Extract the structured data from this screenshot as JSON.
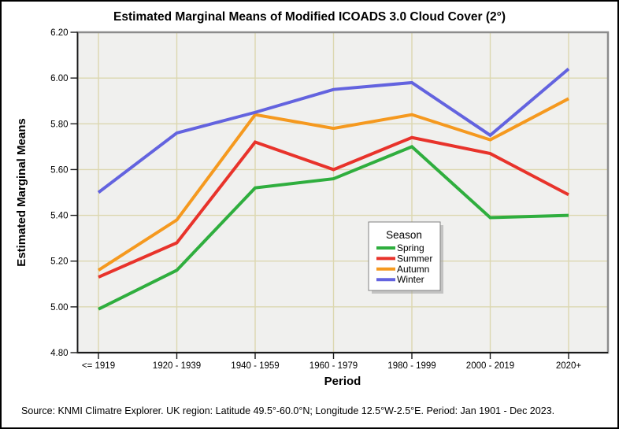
{
  "window": {
    "title": "Estimated Marginal Means of Modified ICOADS 3.0 Cloud Cover (2°)"
  },
  "footer_text": "Source: KNMI Climatre Explorer. UK region: Latitude 49.5°-60.0°N; Longitude 12.5°W-2.5°E. Period: Jan 1901 - Dec 2023.",
  "chart_data": {
    "type": "line",
    "title": "Estimated Marginal Means of Modified ICOADS 3.0 Cloud Cover (2°)",
    "xlabel": "Period",
    "ylabel": "Estimated Marginal Means",
    "categories": [
      "<= 1919",
      "1920 - 1939",
      "1940 - 1959",
      "1960 - 1979",
      "1980 - 1999",
      "2000 - 2019",
      "2020+"
    ],
    "series": [
      {
        "name": "Spring",
        "color": "#2FAE3E",
        "values": [
          4.99,
          5.16,
          5.52,
          5.56,
          5.7,
          5.39,
          5.4
        ]
      },
      {
        "name": "Summer",
        "color": "#E8332B",
        "values": [
          5.13,
          5.28,
          5.72,
          5.6,
          5.74,
          5.67,
          5.49
        ]
      },
      {
        "name": "Autumn",
        "color": "#F5991F",
        "values": [
          5.16,
          5.38,
          5.84,
          5.78,
          5.84,
          5.73,
          5.91
        ]
      },
      {
        "name": "Winter",
        "color": "#6363DF",
        "values": [
          5.5,
          5.76,
          5.85,
          5.95,
          5.98,
          5.75,
          6.04
        ]
      }
    ],
    "ylim": [
      4.8,
      6.2
    ],
    "yticks": [
      "6.20",
      "6.00",
      "5.80",
      "5.60",
      "5.40",
      "5.20",
      "5.00",
      "4.80"
    ],
    "grid": true,
    "legend": {
      "title": "Season",
      "position": "inside-center-right"
    },
    "colors": {
      "plot_bg": "#F0F0EE",
      "grid_line": "#DCD7B0",
      "plot_border": "#8C8C8C",
      "axis_line": "#1A1A1A"
    }
  }
}
